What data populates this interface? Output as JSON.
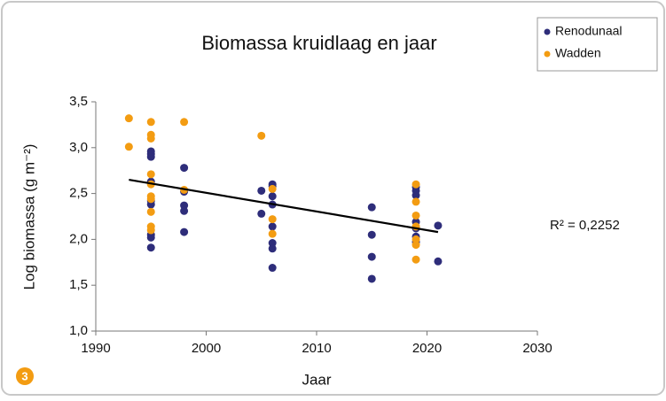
{
  "chart_data": {
    "type": "scatter",
    "title": "Biomassa kruidlaag en jaar",
    "x_label": "Jaar",
    "y_label": "Log biomassa (g m⁻²)",
    "xlim": [
      1990,
      2030
    ],
    "ylim": [
      1.0,
      3.5
    ],
    "xticks": [
      1990,
      2000,
      2010,
      2020,
      2030
    ],
    "yticks": [
      {
        "value": 1.0,
        "label": "1,0"
      },
      {
        "value": 1.5,
        "label": "1,5"
      },
      {
        "value": 2.0,
        "label": "2,0"
      },
      {
        "value": 2.5,
        "label": "2,5"
      },
      {
        "value": 3.0,
        "label": "3,0"
      },
      {
        "value": 3.5,
        "label": "3,5"
      }
    ],
    "grid": false,
    "legend": "top-right",
    "series": [
      {
        "name": "Renodunaal",
        "color": "#2e2d7a",
        "x": [
          1995,
          1995,
          1995,
          1995,
          1995,
          1995,
          1995,
          1995,
          1995,
          1998,
          1998,
          1998,
          1998,
          1998,
          2005,
          2005,
          2006,
          2006,
          2006,
          2006,
          2006,
          2006,
          2006,
          2006,
          2015,
          2015,
          2015,
          2015,
          2019,
          2019,
          2019,
          2019,
          2019,
          2019,
          2019,
          2021,
          2021
        ],
        "values": [
          2.96,
          2.93,
          2.9,
          2.63,
          2.42,
          2.38,
          2.05,
          2.02,
          1.91,
          2.78,
          2.52,
          2.37,
          2.31,
          2.08,
          2.53,
          2.28,
          2.6,
          2.58,
          2.47,
          2.38,
          2.14,
          1.96,
          1.9,
          1.69,
          2.35,
          2.05,
          1.81,
          1.57,
          2.57,
          2.53,
          2.48,
          2.19,
          2.12,
          2.03,
          1.97,
          2.15,
          1.76
        ]
      },
      {
        "name": "Wadden",
        "color": "#f39c12",
        "x": [
          1993,
          1993,
          1995,
          1995,
          1995,
          1995,
          1995,
          1995,
          1995,
          1995,
          1995,
          1995,
          1998,
          1998,
          2005,
          2006,
          2006,
          2006,
          2019,
          2019,
          2019,
          2019,
          2019,
          2019,
          2019
        ],
        "values": [
          3.32,
          3.01,
          3.28,
          3.14,
          3.1,
          2.71,
          2.6,
          2.47,
          2.44,
          2.3,
          2.14,
          2.1,
          3.28,
          2.54,
          3.13,
          2.55,
          2.22,
          2.06,
          2.6,
          2.41,
          2.26,
          2.14,
          2.0,
          1.94,
          1.78
        ]
      }
    ],
    "trendline": {
      "color": "#000000",
      "x": [
        1993,
        2021
      ],
      "values": [
        2.65,
        2.08
      ]
    },
    "annotation": "R² = 0,2252",
    "figure_label": "3"
  }
}
